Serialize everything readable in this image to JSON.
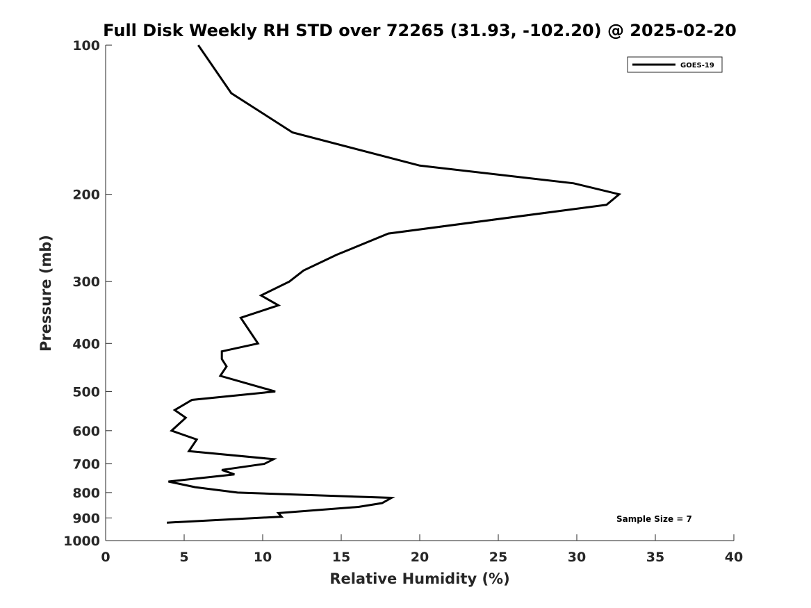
{
  "chart_data": {
    "type": "line",
    "title": "Full Disk Weekly RH STD over 72265 (31.93, -102.20) @ 2025-02-20",
    "xlabel": "Relative Humidity (%)",
    "ylabel": "Pressure (mb)",
    "xlim": [
      0,
      40
    ],
    "ylim": [
      100,
      1000
    ],
    "yscale": "log",
    "yreversed": true,
    "grid": false,
    "x_ticks": [
      0,
      5,
      10,
      15,
      20,
      25,
      30,
      35,
      40
    ],
    "y_ticks": [
      100,
      200,
      300,
      400,
      500,
      600,
      700,
      800,
      900,
      1000
    ],
    "legend_position": "top-right",
    "series": [
      {
        "name": "GOES-19",
        "color": "#000000",
        "points": [
          {
            "rh": 5.9,
            "p": 100
          },
          {
            "rh": 8.0,
            "p": 125
          },
          {
            "rh": 11.9,
            "p": 150
          },
          {
            "rh": 20.0,
            "p": 175
          },
          {
            "rh": 29.8,
            "p": 190
          },
          {
            "rh": 32.7,
            "p": 200
          },
          {
            "rh": 31.9,
            "p": 210
          },
          {
            "rh": 18.0,
            "p": 240
          },
          {
            "rh": 14.7,
            "p": 265
          },
          {
            "rh": 12.6,
            "p": 285
          },
          {
            "rh": 11.7,
            "p": 300
          },
          {
            "rh": 9.9,
            "p": 320
          },
          {
            "rh": 11.0,
            "p": 335
          },
          {
            "rh": 8.6,
            "p": 355
          },
          {
            "rh": 9.7,
            "p": 400
          },
          {
            "rh": 7.4,
            "p": 415
          },
          {
            "rh": 7.4,
            "p": 430
          },
          {
            "rh": 7.7,
            "p": 445
          },
          {
            "rh": 7.3,
            "p": 465
          },
          {
            "rh": 10.8,
            "p": 500
          },
          {
            "rh": 5.5,
            "p": 520
          },
          {
            "rh": 4.4,
            "p": 545
          },
          {
            "rh": 5.1,
            "p": 565
          },
          {
            "rh": 4.2,
            "p": 600
          },
          {
            "rh": 5.8,
            "p": 625
          },
          {
            "rh": 5.3,
            "p": 660
          },
          {
            "rh": 10.7,
            "p": 685
          },
          {
            "rh": 10.1,
            "p": 700
          },
          {
            "rh": 7.4,
            "p": 720
          },
          {
            "rh": 8.2,
            "p": 735
          },
          {
            "rh": 4.0,
            "p": 760
          },
          {
            "rh": 5.7,
            "p": 780
          },
          {
            "rh": 8.4,
            "p": 800
          },
          {
            "rh": 18.2,
            "p": 820
          },
          {
            "rh": 17.6,
            "p": 840
          },
          {
            "rh": 16.1,
            "p": 855
          },
          {
            "rh": 11.0,
            "p": 880
          },
          {
            "rh": 11.2,
            "p": 895
          },
          {
            "rh": 3.9,
            "p": 920
          }
        ]
      }
    ],
    "annotation": "Sample Size = 7"
  }
}
